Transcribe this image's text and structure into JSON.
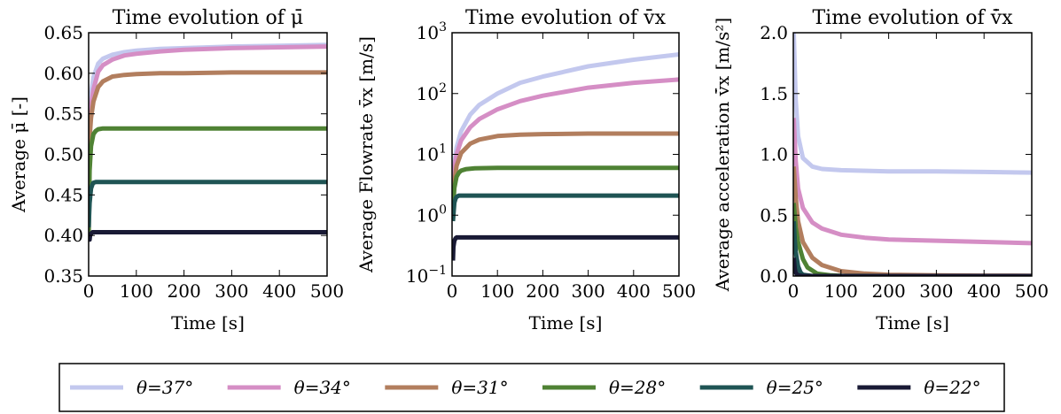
{
  "chart_data": [
    {
      "type": "line",
      "title": "Time evolution of μ̄",
      "xlabel": "Time [s]",
      "ylabel": "Average μ̄ [-]",
      "xlim": [
        0,
        500
      ],
      "ylim": [
        0.35,
        0.65
      ],
      "yscale": "linear",
      "xticks": [
        0,
        100,
        200,
        300,
        400,
        500
      ],
      "xtick_labels": [
        "0",
        "100",
        "200",
        "300",
        "400",
        "500"
      ],
      "yticks": [
        0.35,
        0.4,
        0.45,
        0.5,
        0.55,
        0.6,
        0.65
      ],
      "ytick_labels": [
        "0.35",
        "0.40",
        "0.45",
        "0.50",
        "0.55",
        "0.60",
        "0.65"
      ],
      "grid": false,
      "series": [
        {
          "name": "θ=37°",
          "x": [
            0,
            2,
            5,
            10,
            20,
            30,
            50,
            75,
            100,
            150,
            200,
            300,
            400,
            500
          ],
          "values": [
            0.4,
            0.55,
            0.575,
            0.595,
            0.612,
            0.618,
            0.623,
            0.626,
            0.628,
            0.63,
            0.631,
            0.633,
            0.634,
            0.635
          ]
        },
        {
          "name": "θ=34°",
          "x": [
            0,
            2,
            5,
            10,
            20,
            30,
            50,
            75,
            100,
            150,
            200,
            300,
            400,
            500
          ],
          "values": [
            0.4,
            0.53,
            0.56,
            0.58,
            0.602,
            0.61,
            0.617,
            0.622,
            0.624,
            0.627,
            0.629,
            0.631,
            0.632,
            0.633
          ]
        },
        {
          "name": "θ=31°",
          "x": [
            0,
            2,
            5,
            10,
            20,
            30,
            50,
            75,
            100,
            150,
            200,
            300,
            400,
            500
          ],
          "values": [
            0.4,
            0.52,
            0.545,
            0.565,
            0.583,
            0.59,
            0.596,
            0.598,
            0.599,
            0.6,
            0.6,
            0.601,
            0.601,
            0.601
          ]
        },
        {
          "name": "θ=28°",
          "x": [
            0,
            2,
            5,
            10,
            15,
            20,
            30,
            50,
            100,
            200,
            300,
            400,
            500
          ],
          "values": [
            0.4,
            0.48,
            0.51,
            0.525,
            0.529,
            0.531,
            0.532,
            0.532,
            0.532,
            0.532,
            0.532,
            0.532,
            0.532
          ]
        },
        {
          "name": "θ=25°",
          "x": [
            0,
            2,
            5,
            8,
            10,
            15,
            20,
            50,
            100,
            200,
            300,
            400,
            500
          ],
          "values": [
            0.41,
            0.44,
            0.458,
            0.463,
            0.465,
            0.466,
            0.466,
            0.466,
            0.466,
            0.466,
            0.466,
            0.466,
            0.466
          ]
        },
        {
          "name": "θ=22°",
          "x": [
            0,
            2,
            3,
            5,
            8,
            10,
            50,
            100,
            200,
            300,
            400,
            500
          ],
          "values": [
            0.395,
            0.395,
            0.4,
            0.402,
            0.404,
            0.404,
            0.404,
            0.404,
            0.404,
            0.404,
            0.404,
            0.404
          ]
        }
      ]
    },
    {
      "type": "line",
      "title": "Time evolution of v̄x",
      "xlabel": "Time [s]",
      "ylabel": "Average Flowrate v̄x [m/s]",
      "xlim": [
        0,
        500
      ],
      "ylim": [
        0.1,
        1000
      ],
      "yscale": "log",
      "xticks": [
        0,
        100,
        200,
        300,
        400,
        500
      ],
      "xtick_labels": [
        "0",
        "100",
        "200",
        "300",
        "400",
        "500"
      ],
      "yticks": [
        0.1,
        1,
        10,
        100,
        1000
      ],
      "ytick_labels": [
        "10⁻¹",
        "10⁰",
        "10¹",
        "10²",
        "10³"
      ],
      "grid": false,
      "series": [
        {
          "name": "θ=37°",
          "x": [
            2,
            5,
            10,
            20,
            40,
            60,
            100,
            150,
            200,
            300,
            400,
            500
          ],
          "values": [
            3,
            7,
            13,
            24,
            45,
            65,
            100,
            150,
            190,
            280,
            360,
            440
          ]
        },
        {
          "name": "θ=34°",
          "x": [
            2,
            5,
            10,
            20,
            40,
            60,
            100,
            150,
            200,
            300,
            400,
            500
          ],
          "values": [
            2.5,
            6,
            10,
            17,
            28,
            38,
            55,
            75,
            92,
            125,
            150,
            170
          ]
        },
        {
          "name": "θ=31°",
          "x": [
            2,
            5,
            10,
            20,
            40,
            60,
            100,
            150,
            200,
            300,
            400,
            500
          ],
          "values": [
            1.5,
            3.5,
            6.5,
            10.5,
            15,
            17.5,
            20,
            21,
            21.5,
            22,
            22,
            22
          ]
        },
        {
          "name": "θ=28°",
          "x": [
            2,
            5,
            10,
            15,
            20,
            30,
            50,
            100,
            200,
            300,
            400,
            500
          ],
          "values": [
            1.2,
            2.8,
            4.3,
            5.0,
            5.4,
            5.7,
            5.9,
            6,
            6,
            6,
            6,
            6
          ]
        },
        {
          "name": "θ=25°",
          "x": [
            2,
            5,
            8,
            10,
            15,
            20,
            50,
            100,
            200,
            300,
            400,
            500
          ],
          "values": [
            0.8,
            1.6,
            1.9,
            2.0,
            2.1,
            2.1,
            2.1,
            2.1,
            2.1,
            2.1,
            2.1,
            2.1
          ]
        },
        {
          "name": "θ=22°",
          "x": [
            2,
            3,
            5,
            8,
            10,
            20,
            50,
            100,
            200,
            300,
            400,
            500
          ],
          "values": [
            0.18,
            0.3,
            0.38,
            0.42,
            0.43,
            0.43,
            0.43,
            0.43,
            0.43,
            0.43,
            0.43,
            0.43
          ]
        }
      ]
    },
    {
      "type": "line",
      "title": "Time evolution of v̄̇x",
      "xlabel": "Time [s]",
      "ylabel": "Average acceleration v̄̇x [m/s²]",
      "xlim": [
        0,
        500
      ],
      "ylim": [
        0.0,
        2.0
      ],
      "yscale": "linear",
      "xticks": [
        0,
        100,
        200,
        300,
        400,
        500
      ],
      "xtick_labels": [
        "0",
        "100",
        "200",
        "300",
        "400",
        "500"
      ],
      "yticks": [
        0.0,
        0.5,
        1.0,
        1.5,
        2.0
      ],
      "ytick_labels": [
        "0.0",
        "0.5",
        "1.0",
        "1.5",
        "2.0"
      ],
      "grid": false,
      "series": [
        {
          "name": "θ=37°",
          "x": [
            1,
            5,
            10,
            20,
            40,
            60,
            100,
            200,
            300,
            400,
            500
          ],
          "values": [
            2.0,
            1.45,
            1.15,
            0.97,
            0.9,
            0.88,
            0.87,
            0.86,
            0.86,
            0.855,
            0.85
          ]
        },
        {
          "name": "θ=34°",
          "x": [
            1,
            5,
            10,
            20,
            40,
            60,
            100,
            150,
            200,
            300,
            400,
            500
          ],
          "values": [
            1.3,
            0.95,
            0.72,
            0.56,
            0.44,
            0.39,
            0.34,
            0.315,
            0.3,
            0.29,
            0.28,
            0.27
          ]
        },
        {
          "name": "θ=31°",
          "x": [
            1,
            5,
            10,
            20,
            40,
            60,
            100,
            150,
            200,
            300,
            400,
            500
          ],
          "values": [
            0.9,
            0.65,
            0.45,
            0.28,
            0.15,
            0.09,
            0.04,
            0.02,
            0.01,
            0.005,
            0.003,
            0.002
          ]
        },
        {
          "name": "θ=28°",
          "x": [
            1,
            5,
            10,
            20,
            30,
            50,
            80,
            100,
            200,
            500
          ],
          "values": [
            0.6,
            0.4,
            0.28,
            0.14,
            0.07,
            0.02,
            0.005,
            0.002,
            0.0,
            0.0
          ]
        },
        {
          "name": "θ=25°",
          "x": [
            1,
            3,
            5,
            10,
            15,
            20,
            40,
            100,
            500
          ],
          "values": [
            0.45,
            0.3,
            0.2,
            0.08,
            0.03,
            0.01,
            0.0,
            0.0,
            0.0
          ]
        },
        {
          "name": "θ=22°",
          "x": [
            1,
            2,
            3,
            5,
            8,
            10,
            20,
            500
          ],
          "values": [
            0.15,
            0.1,
            0.06,
            0.03,
            0.01,
            0.005,
            0.0,
            0.0
          ]
        }
      ]
    }
  ],
  "legend": {
    "placement": "bottom-center",
    "items": [
      {
        "label": "θ=37°",
        "color": "#c3c8ee"
      },
      {
        "label": "θ=34°",
        "color": "#d58ec5"
      },
      {
        "label": "θ=31°",
        "color": "#b27e5e"
      },
      {
        "label": "θ=28°",
        "color": "#4f8234"
      },
      {
        "label": "θ=25°",
        "color": "#1f5454"
      },
      {
        "label": "θ=22°",
        "color": "#191a35"
      }
    ]
  }
}
